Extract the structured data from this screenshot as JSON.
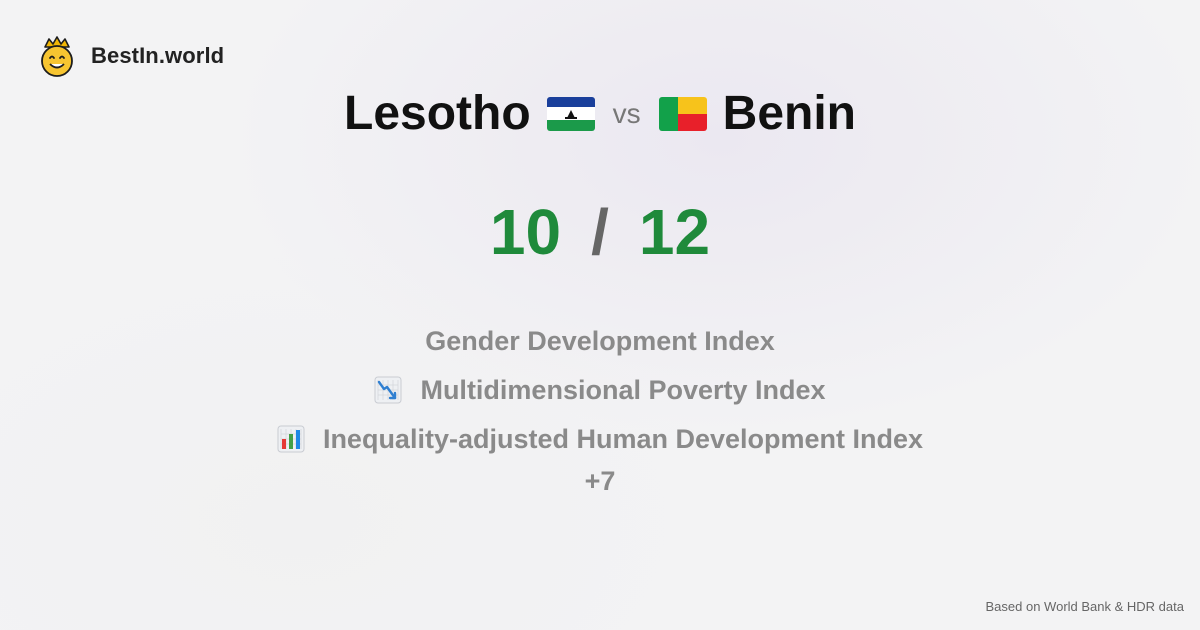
{
  "brand": {
    "name": "BestIn.world",
    "icon": "crowned-smiley-icon"
  },
  "comparison": {
    "country_a": {
      "name": "Lesotho",
      "flag": "lesotho-flag-icon",
      "score": "10"
    },
    "vs_label": "vs",
    "country_b": {
      "name": "Benin",
      "flag": "benin-flag-icon",
      "score": "12"
    },
    "separator": "/"
  },
  "metrics": [
    {
      "label": "Gender Development Index",
      "icon": ""
    },
    {
      "label": "Multidimensional Poverty Index",
      "icon": "chart-decreasing-icon"
    },
    {
      "label": "Inequality-adjusted Human Development Index",
      "icon": "bar-chart-icon"
    }
  ],
  "more_label": "+7",
  "footer": {
    "source": "Based on World Bank & HDR data"
  },
  "colors": {
    "score": "#1f8a3b",
    "muted": "#8a8a8a",
    "title": "#111111"
  }
}
